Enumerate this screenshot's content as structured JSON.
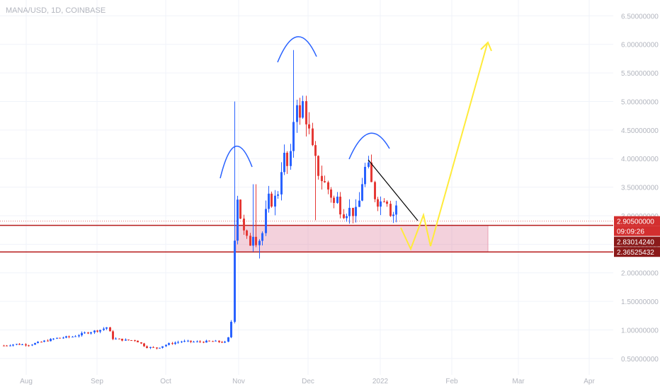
{
  "symbol_label": "MANA/USD, 1D, COINBASE",
  "chart_data": {
    "type": "candlestick",
    "title": "MANA/USD, 1D, COINBASE",
    "x_ticks": [
      "Aug",
      "Sep",
      "Oct",
      "Nov",
      "Dec",
      "2022",
      "Feb",
      "Mar",
      "Apr"
    ],
    "y_ticks": [
      "0.50000000",
      "1.00000000",
      "1.50000000",
      "2.00000000",
      "2.50000000",
      "3.00000000",
      "3.50000000",
      "4.00000000",
      "4.50000000",
      "5.00000000",
      "5.50000000",
      "6.00000000",
      "6.50000000"
    ],
    "ylim": [
      0.3,
      6.8
    ],
    "price_labels": [
      {
        "text": "2.90500000",
        "value": 2.905,
        "color": "#d32f2f"
      },
      {
        "text": "09:09:26",
        "value": 2.905,
        "color": "#d32f2f",
        "offset": 1
      },
      {
        "text": "2.83014240",
        "value": 2.8301424,
        "color": "#8b1a1a"
      },
      {
        "text": "2.36525432",
        "value": 2.36525432,
        "color": "#8b1a1a"
      }
    ],
    "zone": {
      "top": 2.8301424,
      "bottom": 2.36525432,
      "fill": "rgba(219,112,147,0.32)",
      "stroke": "#b71c1c"
    },
    "colors": {
      "up": "#2962ff",
      "down": "#e53935",
      "arc": "#2962ff",
      "projection": "#ffeb3b",
      "trendline": "#000000",
      "grid": "#f0f3fa",
      "axis_text": "#b2b5be",
      "symbol_text": "#b2b5be"
    },
    "price_line": 2.905
  }
}
